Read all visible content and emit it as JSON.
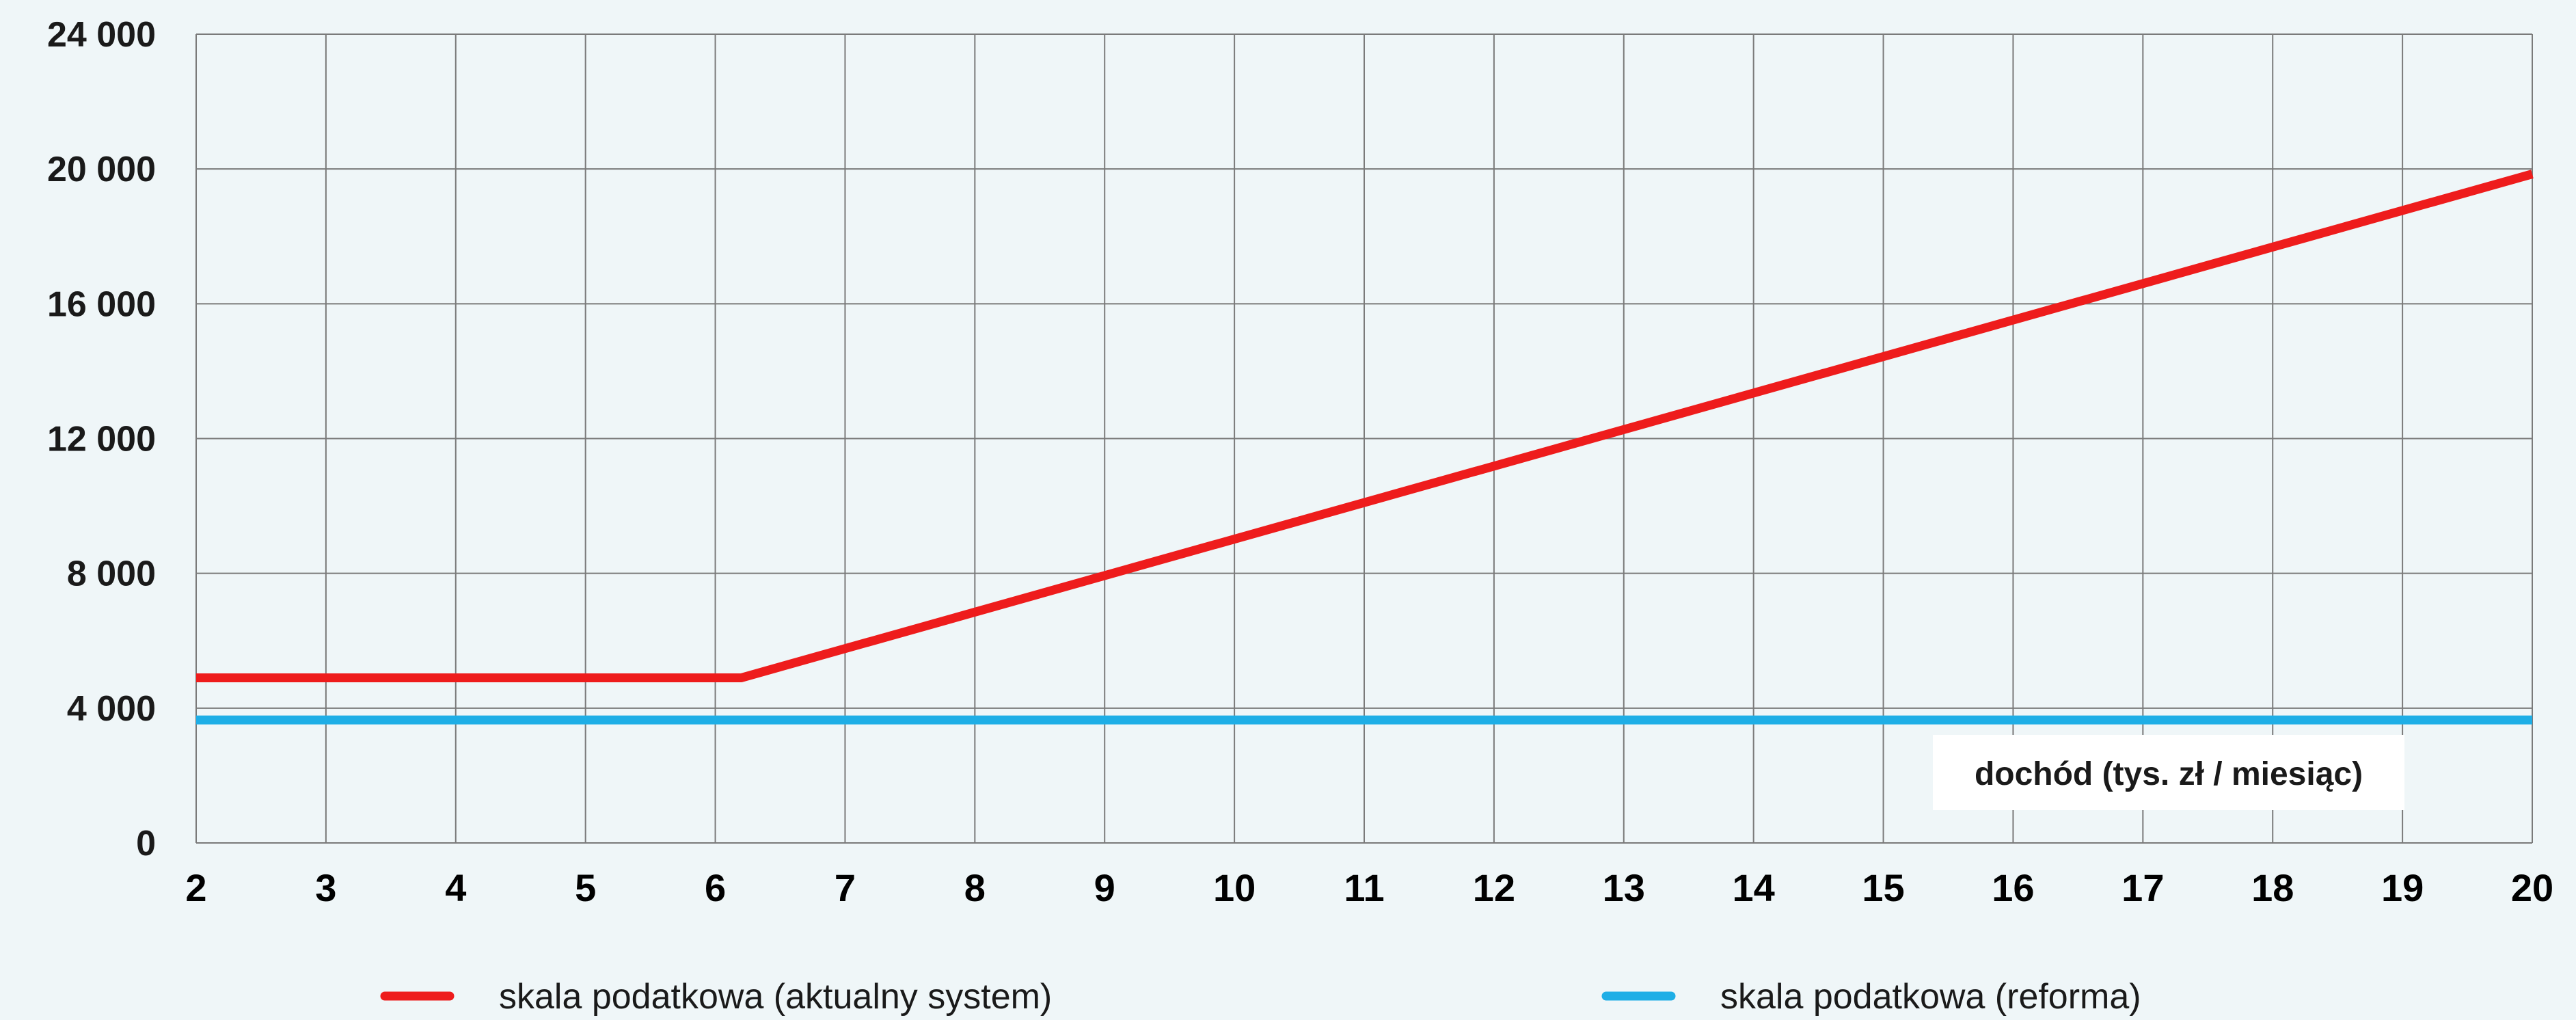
{
  "chart_data": {
    "type": "line",
    "title": "",
    "xlabel": "dochód (tys. zł / miesiąc)",
    "ylabel": "",
    "xlim": [
      2,
      20
    ],
    "ylim": [
      0,
      24000
    ],
    "x_ticks": [
      {
        "value": 2,
        "label": "2"
      },
      {
        "value": 3,
        "label": "3"
      },
      {
        "value": 4,
        "label": "4"
      },
      {
        "value": 5,
        "label": "5"
      },
      {
        "value": 6,
        "label": "6"
      },
      {
        "value": 7,
        "label": "7"
      },
      {
        "value": 8,
        "label": "8"
      },
      {
        "value": 9,
        "label": "9"
      },
      {
        "value": 10,
        "label": "10"
      },
      {
        "value": 11,
        "label": "11"
      },
      {
        "value": 12,
        "label": "12"
      },
      {
        "value": 13,
        "label": "13"
      },
      {
        "value": 14,
        "label": "14"
      },
      {
        "value": 15,
        "label": "15"
      },
      {
        "value": 16,
        "label": "16"
      },
      {
        "value": 17,
        "label": "17"
      },
      {
        "value": 18,
        "label": "18"
      },
      {
        "value": 19,
        "label": "19"
      },
      {
        "value": 20,
        "label": "20"
      }
    ],
    "y_ticks": [
      {
        "value": 0,
        "label": "0"
      },
      {
        "value": 4000,
        "label": "4 000"
      },
      {
        "value": 8000,
        "label": "8 000"
      },
      {
        "value": 12000,
        "label": "12 000"
      },
      {
        "value": 16000,
        "label": "16 000"
      },
      {
        "value": 20000,
        "label": "20 000"
      },
      {
        "value": 24000,
        "label": "24 000"
      }
    ],
    "grid": true,
    "legend_position": "bottom",
    "series": [
      {
        "name": "skala podatkowa (aktualny system)",
        "color": "#ee1c1c",
        "points": [
          [
            2,
            4900
          ],
          [
            6.2,
            4900
          ],
          [
            20,
            19850
          ]
        ]
      },
      {
        "name": "skala podatkowa (reforma)",
        "color": "#1eaee6",
        "points": [
          [
            2,
            3650
          ],
          [
            20,
            3650
          ]
        ]
      }
    ]
  }
}
